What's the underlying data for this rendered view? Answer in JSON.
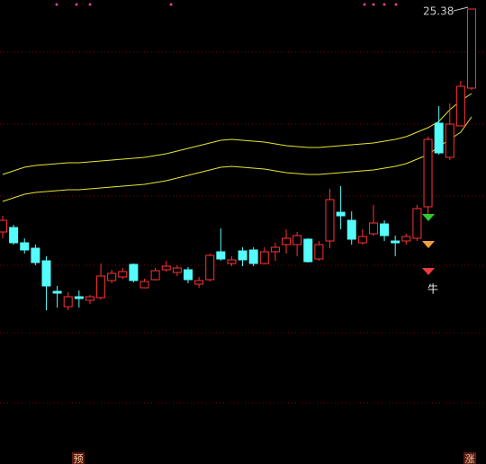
{
  "chart_data": {
    "type": "candlestick",
    "ylim": [
      15.26,
      25.58
    ],
    "up_color": "#ff3232",
    "down_color": "#54fcfc",
    "open": [
      20.42,
      20.52,
      20.18,
      20.06,
      19.78,
      19.1,
      18.76,
      18.98,
      18.9,
      18.96,
      19.34,
      19.42,
      19.7,
      19.18,
      19.36,
      19.58,
      19.52,
      19.58,
      19.26,
      19.36,
      19.98,
      19.72,
      20.0,
      20.02,
      19.72,
      19.98,
      20.14,
      20.14,
      20.26,
      19.82,
      20.22,
      20.86,
      20.68,
      20.18,
      20.38,
      20.6,
      20.22,
      20.22,
      20.28,
      20.98,
      22.84,
      22.08,
      22.78,
      23.62
    ],
    "high": [
      20.78,
      20.58,
      20.28,
      20.14,
      19.88,
      19.22,
      19.08,
      19.12,
      19.02,
      19.72,
      19.58,
      19.62,
      19.72,
      19.38,
      19.62,
      19.78,
      19.68,
      19.64,
      19.42,
      19.94,
      20.5,
      19.88,
      20.08,
      20.08,
      20.08,
      20.18,
      20.48,
      20.42,
      20.28,
      20.22,
      21.38,
      21.44,
      20.88,
      20.48,
      21.02,
      20.68,
      20.34,
      20.38,
      21.02,
      22.54,
      23.22,
      23.28,
      23.78,
      25.38
    ],
    "low": [
      20.28,
      20.14,
      19.94,
      19.68,
      18.68,
      18.74,
      18.68,
      18.74,
      18.82,
      18.92,
      19.28,
      19.38,
      19.3,
      19.18,
      19.34,
      19.54,
      19.44,
      19.28,
      19.18,
      19.32,
      19.78,
      19.66,
      19.66,
      19.66,
      19.7,
      19.78,
      19.94,
      19.88,
      19.74,
      19.78,
      20.06,
      20.48,
      20.14,
      20.14,
      20.34,
      20.22,
      19.88,
      20.14,
      20.22,
      20.78,
      22.14,
      22.02,
      22.78,
      23.58
    ],
    "close": [
      20.68,
      20.18,
      20.02,
      19.74,
      19.22,
      19.06,
      18.98,
      18.94,
      18.98,
      19.44,
      19.5,
      19.54,
      19.34,
      19.32,
      19.56,
      19.66,
      19.62,
      19.36,
      19.34,
      19.9,
      19.82,
      19.8,
      19.8,
      19.72,
      19.98,
      20.08,
      20.28,
      20.34,
      19.76,
      20.14,
      21.14,
      20.78,
      20.26,
      20.32,
      20.62,
      20.34,
      20.18,
      20.32,
      20.94,
      22.48,
      22.18,
      22.82,
      23.66,
      25.38
    ],
    "lines": [
      {
        "color": "#e6e632",
        "values": [
          21.7,
          21.78,
          21.86,
          21.9,
          21.92,
          21.94,
          21.96,
          21.96,
          21.98,
          22.0,
          22.02,
          22.04,
          22.06,
          22.08,
          22.12,
          22.16,
          22.22,
          22.28,
          22.34,
          22.4,
          22.46,
          22.48,
          22.46,
          22.44,
          22.42,
          22.38,
          22.34,
          22.32,
          22.3,
          22.3,
          22.32,
          22.34,
          22.36,
          22.38,
          22.4,
          22.44,
          22.48,
          22.54,
          22.64,
          22.74,
          22.88,
          23.14,
          23.34,
          23.5
        ]
      },
      {
        "color": "#e6e632",
        "values": [
          21.1,
          21.18,
          21.26,
          21.3,
          21.32,
          21.34,
          21.36,
          21.36,
          21.38,
          21.4,
          21.42,
          21.44,
          21.46,
          21.48,
          21.52,
          21.56,
          21.62,
          21.68,
          21.74,
          21.8,
          21.86,
          21.88,
          21.86,
          21.84,
          21.82,
          21.78,
          21.74,
          21.72,
          21.7,
          21.7,
          21.72,
          21.74,
          21.76,
          21.78,
          21.8,
          21.84,
          21.88,
          21.94,
          22.04,
          22.14,
          22.32,
          22.48,
          22.64,
          22.98
        ]
      }
    ],
    "max_label": "25.38",
    "signal_label": "牛",
    "bottom_left_label": "预",
    "bottom_right_label": "涨"
  }
}
